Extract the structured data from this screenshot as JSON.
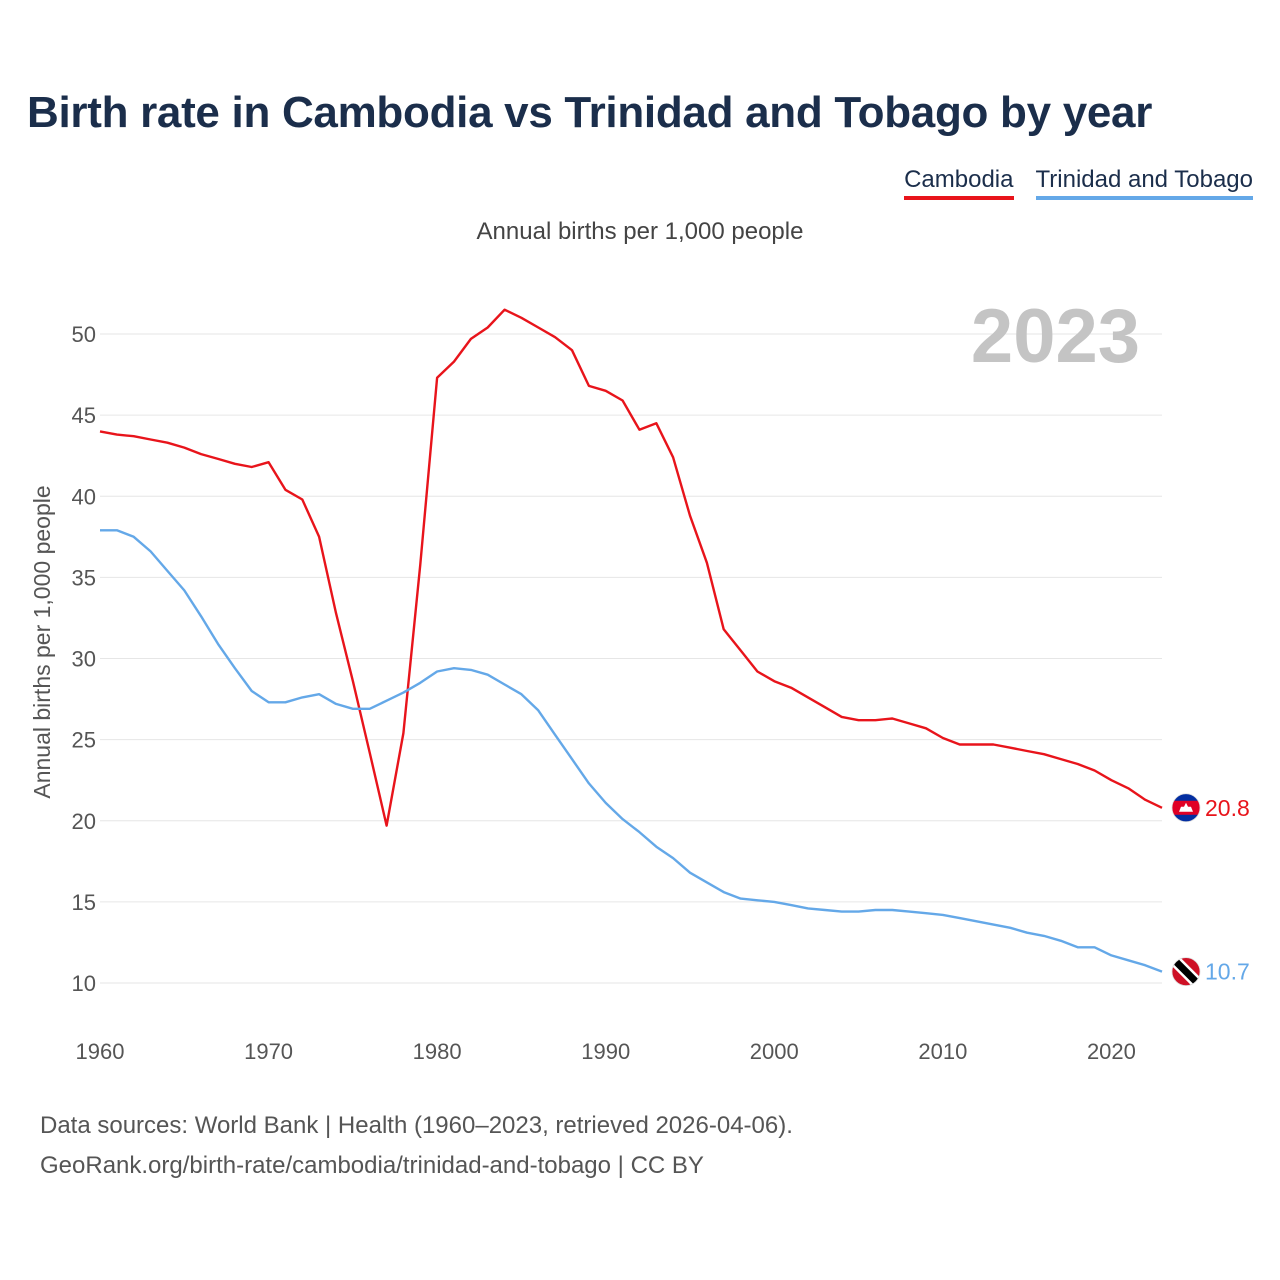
{
  "header": {
    "title": "Birth rate in Cambodia vs Trinidad and Tobago by year"
  },
  "legend": [
    {
      "label": "Cambodia",
      "color": "#e8141b"
    },
    {
      "label": "Trinidad and Tobago",
      "color": "#64a8e8"
    }
  ],
  "subtitle": "Annual births per 1,000 people",
  "year_label": "2023",
  "footer": {
    "line1": "Data sources: World Bank | Health (1960–2023, retrieved 2026-04-06).",
    "line2": "GeoRank.org/birth-rate/cambodia/trinidad-and-tobago | CC BY"
  },
  "chart_data": {
    "type": "line",
    "title": "Birth rate in Cambodia vs Trinidad and Tobago by year",
    "ylabel": "Annual births per 1,000 people",
    "xlabel": "",
    "xlim": [
      1960,
      2023
    ],
    "ylim": [
      10,
      52
    ],
    "xticks": [
      1960,
      1970,
      1980,
      1990,
      2000,
      2010,
      2020
    ],
    "yticks": [
      10,
      15,
      20,
      25,
      30,
      35,
      40,
      45,
      50
    ],
    "grid": true,
    "legend_position": "top-right",
    "series": [
      {
        "name": "Cambodia",
        "color": "#e8141b",
        "end_label": "20.8",
        "flag_icon": "cambodia-flag-icon",
        "x": [
          1960,
          1961,
          1962,
          1963,
          1964,
          1965,
          1966,
          1967,
          1968,
          1969,
          1970,
          1971,
          1972,
          1973,
          1974,
          1975,
          1976,
          1977,
          1978,
          1979,
          1980,
          1981,
          1982,
          1983,
          1984,
          1985,
          1986,
          1987,
          1988,
          1989,
          1990,
          1991,
          1992,
          1993,
          1994,
          1995,
          1996,
          1997,
          1998,
          1999,
          2000,
          2001,
          2002,
          2003,
          2004,
          2005,
          2006,
          2007,
          2008,
          2009,
          2010,
          2011,
          2012,
          2013,
          2014,
          2015,
          2016,
          2017,
          2018,
          2019,
          2020,
          2021,
          2022,
          2023
        ],
        "values": [
          44.0,
          43.8,
          43.7,
          43.5,
          43.3,
          43.0,
          42.6,
          42.3,
          42.0,
          41.8,
          42.1,
          40.4,
          39.8,
          37.5,
          32.8,
          28.6,
          24.2,
          19.7,
          25.4,
          35.8,
          47.3,
          48.3,
          49.7,
          50.4,
          51.5,
          51.0,
          50.4,
          49.8,
          49.0,
          46.8,
          46.5,
          45.9,
          44.1,
          44.5,
          42.4,
          38.8,
          35.9,
          31.8,
          30.5,
          29.2,
          28.6,
          28.2,
          27.6,
          27.0,
          26.4,
          26.2,
          26.2,
          26.3,
          26.0,
          25.7,
          25.1,
          24.7,
          24.7,
          24.7,
          24.5,
          24.3,
          24.1,
          23.8,
          23.5,
          23.1,
          22.5,
          22.0,
          21.3,
          20.8
        ]
      },
      {
        "name": "Trinidad and Tobago",
        "color": "#64a8e8",
        "end_label": "10.7",
        "flag_icon": "trinidad-and-tobago-flag-icon",
        "x": [
          1960,
          1961,
          1962,
          1963,
          1964,
          1965,
          1966,
          1967,
          1968,
          1969,
          1970,
          1971,
          1972,
          1973,
          1974,
          1975,
          1976,
          1977,
          1978,
          1979,
          1980,
          1981,
          1982,
          1983,
          1984,
          1985,
          1986,
          1987,
          1988,
          1989,
          1990,
          1991,
          1992,
          1993,
          1994,
          1995,
          1996,
          1997,
          1998,
          1999,
          2000,
          2001,
          2002,
          2003,
          2004,
          2005,
          2006,
          2007,
          2008,
          2009,
          2010,
          2011,
          2012,
          2013,
          2014,
          2015,
          2016,
          2017,
          2018,
          2019,
          2020,
          2021,
          2022,
          2023
        ],
        "values": [
          37.9,
          37.9,
          37.5,
          36.6,
          35.4,
          34.2,
          32.6,
          30.9,
          29.4,
          28.0,
          27.3,
          27.3,
          27.6,
          27.8,
          27.2,
          26.9,
          26.9,
          27.4,
          27.9,
          28.5,
          29.2,
          29.4,
          29.3,
          29.0,
          28.4,
          27.8,
          26.8,
          25.3,
          23.8,
          22.3,
          21.1,
          20.1,
          19.3,
          18.4,
          17.7,
          16.8,
          16.2,
          15.6,
          15.2,
          15.1,
          15.0,
          14.8,
          14.6,
          14.5,
          14.4,
          14.4,
          14.5,
          14.5,
          14.4,
          14.3,
          14.2,
          14.0,
          13.8,
          13.6,
          13.4,
          13.1,
          12.9,
          12.6,
          12.2,
          12.2,
          11.7,
          11.4,
          11.1,
          10.7
        ]
      }
    ]
  }
}
